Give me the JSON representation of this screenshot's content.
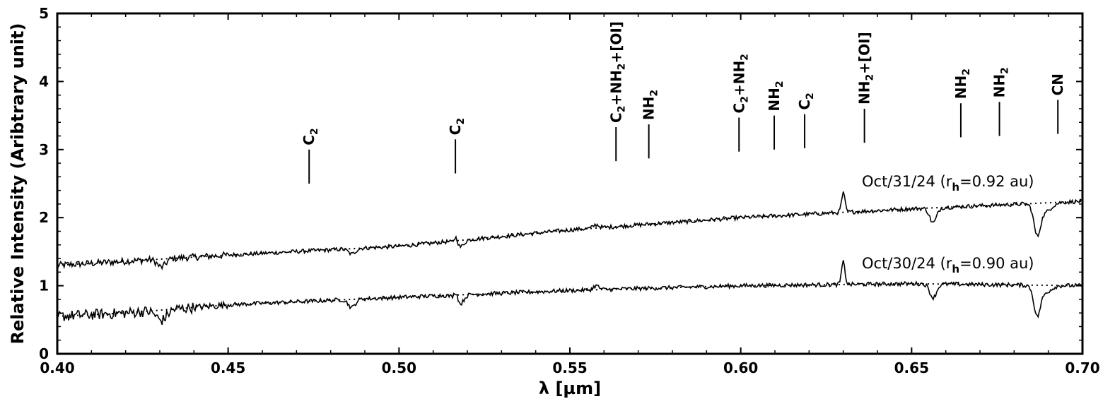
{
  "chart_data": {
    "type": "line",
    "title": "",
    "xlabel": "λ [µm]",
    "ylabel": "Relative Intensity (Aribtrary unit)",
    "xlim": [
      0.4,
      0.7
    ],
    "ylim": [
      0,
      5
    ],
    "grid": false,
    "x_ticks": [
      "0.40",
      "0.45",
      "0.50",
      "0.55",
      "0.60",
      "0.65",
      "0.70"
    ],
    "y_ticks": [
      "0",
      "1",
      "2",
      "3",
      "4",
      "5"
    ],
    "series": [
      {
        "name": "Oct/31/24 (rh=0.92 au)",
        "label_parts": [
          "Oct/31/24 (r",
          "h",
          "=0.92 au)"
        ],
        "continuum": [
          [
            0.4,
            1.3
          ],
          [
            0.45,
            1.45
          ],
          [
            0.5,
            1.58
          ],
          [
            0.55,
            1.82
          ],
          [
            0.6,
            2.0
          ],
          [
            0.65,
            2.13
          ],
          [
            0.7,
            2.24
          ]
        ],
        "features": [
          {
            "x": 0.4305,
            "dy": -0.12,
            "w": 0.0012
          },
          {
            "x": 0.4862,
            "dy": -0.08,
            "w": 0.001
          },
          {
            "x": 0.5167,
            "dy": 0.14,
            "w": 0.0006
          },
          {
            "x": 0.5175,
            "dy": -0.12,
            "w": 0.0012
          },
          {
            "x": 0.5577,
            "dy": 0.05,
            "w": 0.0008
          },
          {
            "x": 0.63,
            "dy": 0.28,
            "w": 0.0005
          },
          {
            "x": 0.6563,
            "dy": -0.22,
            "w": 0.001
          },
          {
            "x": 0.6867,
            "dy": -0.38,
            "w": 0.0009
          },
          {
            "x": 0.6885,
            "dy": -0.15,
            "w": 0.002
          }
        ]
      },
      {
        "name": "Oct/30/24 (rh=0.90 au)",
        "label_parts": [
          "Oct/30/24 (r",
          "h",
          "=0.90 au)"
        ],
        "continuum": [
          [
            0.4,
            0.55
          ],
          [
            0.42,
            0.6
          ],
          [
            0.45,
            0.72
          ],
          [
            0.5,
            0.83
          ],
          [
            0.55,
            0.93
          ],
          [
            0.6,
            1.0
          ],
          [
            0.65,
            1.03
          ],
          [
            0.7,
            1.0
          ]
        ],
        "features": [
          {
            "x": 0.4305,
            "dy": -0.15,
            "w": 0.0015
          },
          {
            "x": 0.4862,
            "dy": -0.12,
            "w": 0.001
          },
          {
            "x": 0.5167,
            "dy": 0.16,
            "w": 0.0006
          },
          {
            "x": 0.5175,
            "dy": -0.16,
            "w": 0.0012
          },
          {
            "x": 0.5577,
            "dy": 0.06,
            "w": 0.0008
          },
          {
            "x": 0.63,
            "dy": 0.33,
            "w": 0.0005
          },
          {
            "x": 0.6563,
            "dy": -0.2,
            "w": 0.001
          },
          {
            "x": 0.6867,
            "dy": -0.38,
            "w": 0.0009
          },
          {
            "x": 0.6885,
            "dy": -0.12,
            "w": 0.002
          }
        ]
      }
    ],
    "line_markers": [
      {
        "x": 0.4737,
        "species": [
          [
            "C",
            ""
          ],
          [
            "2",
            "sub"
          ]
        ],
        "bottom": 2.5,
        "top": 3.0
      },
      {
        "x": 0.5165,
        "species": [
          [
            "C",
            ""
          ],
          [
            "2",
            "sub"
          ]
        ],
        "bottom": 2.65,
        "top": 3.15
      },
      {
        "x": 0.5635,
        "species": [
          [
            "C",
            ""
          ],
          [
            "2",
            "sub"
          ],
          [
            "+NH",
            ""
          ],
          [
            "2",
            "sub"
          ],
          [
            "+[OI]",
            ""
          ]
        ],
        "bottom": 2.83,
        "top": 3.33
      },
      {
        "x": 0.5731,
        "species": [
          [
            "NH",
            ""
          ],
          [
            "2",
            "sub"
          ]
        ],
        "bottom": 2.87,
        "top": 3.37
      },
      {
        "x": 0.5995,
        "species": [
          [
            "C",
            ""
          ],
          [
            "2",
            "sub"
          ],
          [
            "+NH",
            ""
          ],
          [
            "2",
            "sub"
          ]
        ],
        "bottom": 2.97,
        "top": 3.47
      },
      {
        "x": 0.6098,
        "species": [
          [
            "NH",
            ""
          ],
          [
            "2",
            "sub"
          ]
        ],
        "bottom": 3.0,
        "top": 3.5
      },
      {
        "x": 0.6187,
        "species": [
          [
            "C",
            ""
          ],
          [
            "2",
            "sub"
          ]
        ],
        "bottom": 3.02,
        "top": 3.52
      },
      {
        "x": 0.6362,
        "species": [
          [
            "NH",
            ""
          ],
          [
            "2",
            "sub"
          ],
          [
            "+[OI]",
            ""
          ]
        ],
        "bottom": 3.1,
        "top": 3.6
      },
      {
        "x": 0.6644,
        "species": [
          [
            "NH",
            ""
          ],
          [
            "2",
            "sub"
          ]
        ],
        "bottom": 3.18,
        "top": 3.68
      },
      {
        "x": 0.6757,
        "species": [
          [
            "NH",
            ""
          ],
          [
            "2",
            "sub"
          ]
        ],
        "bottom": 3.2,
        "top": 3.7
      },
      {
        "x": 0.6928,
        "species": [
          [
            "CN",
            ""
          ]
        ],
        "bottom": 3.23,
        "top": 3.73
      }
    ]
  }
}
